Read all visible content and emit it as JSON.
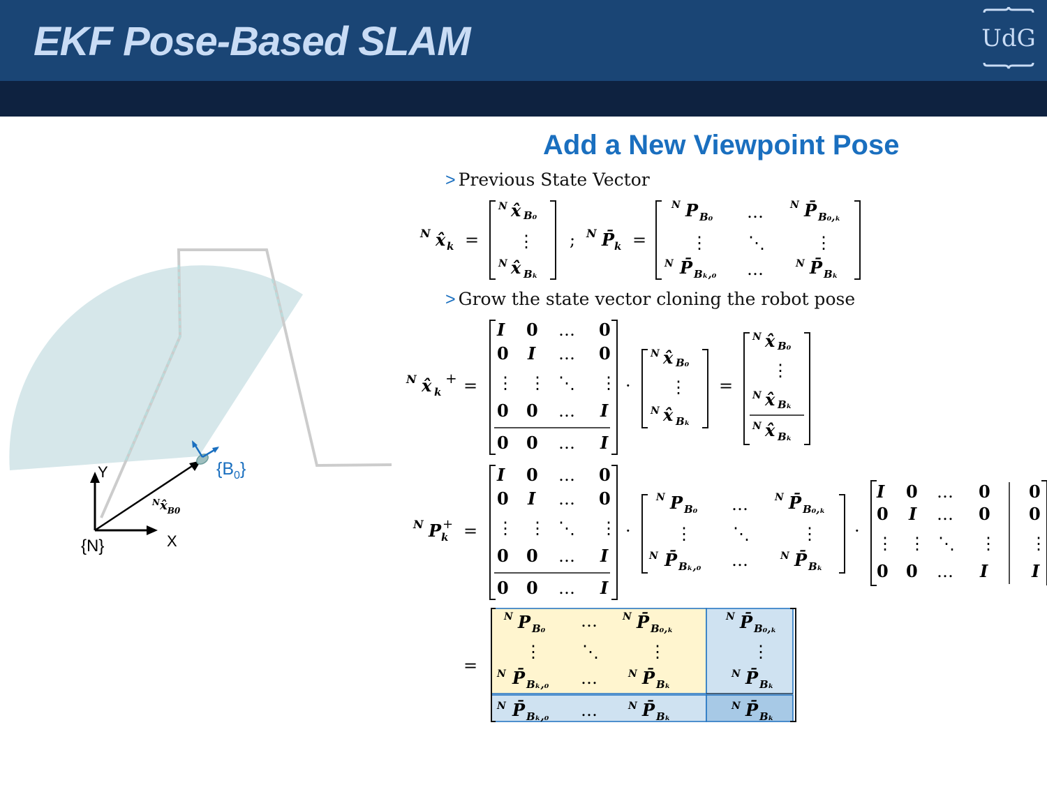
{
  "header": {
    "title": "EKF Pose-Based SLAM",
    "logo_text": "UdG"
  },
  "section": {
    "subtitle": "Add a New Viewpoint Pose"
  },
  "bullets": [
    {
      "marker": ">",
      "text": "Previous State Vector"
    },
    {
      "marker": ">",
      "text": "Grow the state vector cloning the robot pose"
    }
  ],
  "diagram": {
    "frame_n_label": "{N}",
    "axis_x_label": "X",
    "axis_y_label": "Y",
    "frame_b0_label": "{B",
    "frame_b0_sub": "0",
    "frame_b0_close": "}",
    "vector_label": "x̂",
    "vector_sup": "N",
    "vector_sub": "B0",
    "colors": {
      "fov": "#d6e7ea",
      "wall": "#cccccc",
      "frame_b0": "#1a6fbf",
      "axes": "#000000"
    }
  },
  "colors": {
    "header": "#1a4575",
    "band": "#0e2240",
    "title": "#c9dcf5",
    "subtitle": "#1a6fbf",
    "block_yellow": "#fff5cf",
    "block_blue": "#cfe2f1",
    "block_blue_dark": "#a7c9e6",
    "block_border": "#1a6fbf"
  }
}
